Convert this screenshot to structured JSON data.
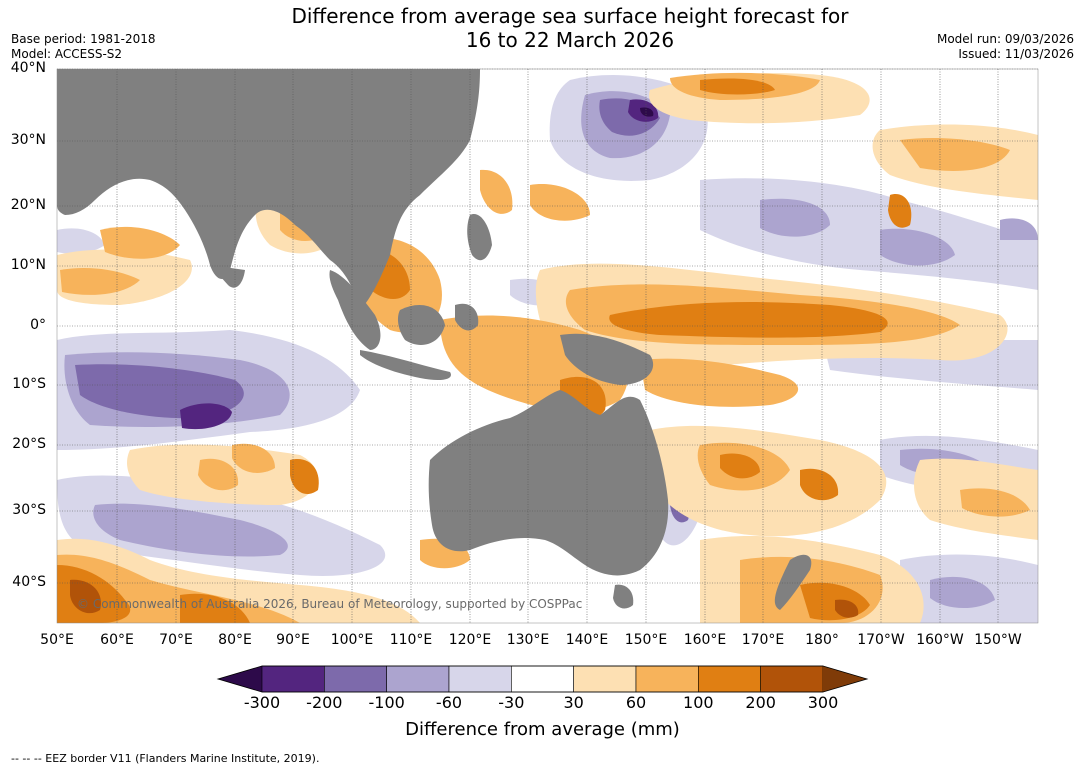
{
  "title_line1": "Difference from average sea surface height forecast for",
  "title_line2": "16 to 22 March 2026",
  "base_period": "Base period: 1981-2018",
  "model": "Model: ACCESS-S2",
  "model_run": "Model run: 09/03/2026",
  "issued": "Issued: 11/03/2026",
  "lat_labels": [
    "40°N",
    "30°N",
    "20°N",
    "10°N",
    "0°",
    "10°S",
    "20°S",
    "30°S",
    "40°S"
  ],
  "lon_labels": [
    "50°E",
    "60°E",
    "70°E",
    "80°E",
    "90°E",
    "100°E",
    "110°E",
    "120°E",
    "130°E",
    "140°E",
    "150°E",
    "160°E",
    "170°E",
    "180°",
    "170°W",
    "160°W",
    "150°W"
  ],
  "copyright": "© Commonwealth of Australia 2026, Bureau of Meteorology, supported by COSPPac",
  "colorbar": {
    "ticks": [
      "-300",
      "-200",
      "-100",
      "-60",
      "-30",
      "30",
      "60",
      "100",
      "200",
      "300"
    ],
    "colors": [
      "#53257f",
      "#7d6aab",
      "#aca4cf",
      "#d7d6ea",
      "#ffffff",
      "#fde0b3",
      "#f7b35b",
      "#e07f13",
      "#b15309"
    ],
    "under_color": "#2d0a4a",
    "over_color": "#7f3b08",
    "title": "Difference from average (mm)"
  },
  "footnote": "-- -- -- EEZ border V11 (Flanders Marine Institute, 2019).",
  "colors": {
    "land": "#808080",
    "ocean": "#ffffff",
    "grid": "#555555"
  }
}
